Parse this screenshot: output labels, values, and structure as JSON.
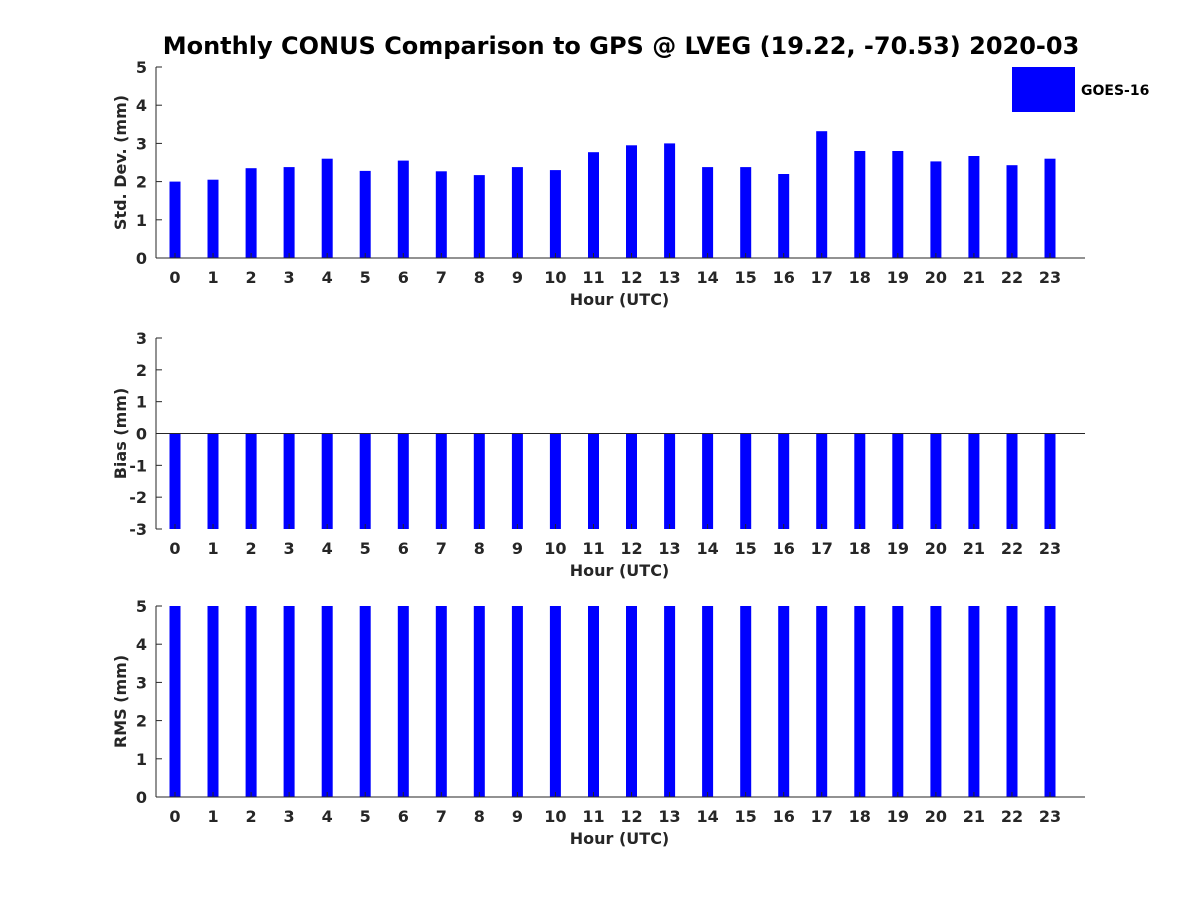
{
  "title": "Monthly CONUS Comparison to GPS @ LVEG (19.22, -70.53) 2020-03",
  "legend": {
    "label": "GOES-16",
    "placement": "top-right"
  },
  "colors": {
    "bar": "#0000ff",
    "axis": "#262626",
    "title": "#000000"
  },
  "chart_data": [
    {
      "type": "bar",
      "name": "std_dev",
      "xlabel": "Hour (UTC)",
      "ylabel": "Std. Dev. (mm)",
      "ylim": [
        0,
        5
      ],
      "yticks": [
        0,
        1,
        2,
        3,
        4,
        5
      ],
      "grid": false,
      "categories": [
        "0",
        "1",
        "2",
        "3",
        "4",
        "5",
        "6",
        "7",
        "8",
        "9",
        "10",
        "11",
        "12",
        "13",
        "14",
        "15",
        "16",
        "17",
        "18",
        "19",
        "20",
        "21",
        "22",
        "23"
      ],
      "series": [
        {
          "name": "GOES-16",
          "values": [
            2.0,
            2.05,
            2.35,
            2.38,
            2.6,
            2.28,
            2.55,
            2.27,
            2.17,
            2.38,
            2.3,
            2.77,
            2.95,
            3.0,
            2.38,
            2.38,
            2.2,
            3.32,
            2.8,
            2.8,
            2.53,
            2.67,
            2.43,
            2.6
          ]
        }
      ]
    },
    {
      "type": "bar",
      "name": "bias",
      "xlabel": "Hour (UTC)",
      "ylabel": "Bias (mm)",
      "ylim": [
        -3,
        3
      ],
      "yticks": [
        -3,
        -2,
        -1,
        0,
        1,
        2,
        3
      ],
      "grid": false,
      "categories": [
        "0",
        "1",
        "2",
        "3",
        "4",
        "5",
        "6",
        "7",
        "8",
        "9",
        "10",
        "11",
        "12",
        "13",
        "14",
        "15",
        "16",
        "17",
        "18",
        "19",
        "20",
        "21",
        "22",
        "23"
      ],
      "series": [
        {
          "name": "GOES-16",
          "values": [
            -3,
            -3,
            -3,
            -3,
            -3,
            -3,
            -3,
            -3,
            -3,
            -3,
            -3,
            -3,
            -3,
            -3,
            -3,
            -3,
            -3,
            -3,
            -3,
            -3,
            -3,
            -3,
            -3,
            -3
          ]
        }
      ]
    },
    {
      "type": "bar",
      "name": "rms",
      "xlabel": "Hour (UTC)",
      "ylabel": "RMS (mm)",
      "ylim": [
        0,
        5
      ],
      "yticks": [
        0,
        1,
        2,
        3,
        4,
        5
      ],
      "grid": false,
      "categories": [
        "0",
        "1",
        "2",
        "3",
        "4",
        "5",
        "6",
        "7",
        "8",
        "9",
        "10",
        "11",
        "12",
        "13",
        "14",
        "15",
        "16",
        "17",
        "18",
        "19",
        "20",
        "21",
        "22",
        "23"
      ],
      "series": [
        {
          "name": "GOES-16",
          "values": [
            5,
            5,
            5,
            5,
            5,
            5,
            5,
            5,
            5,
            5,
            5,
            5,
            5,
            5,
            5,
            5,
            5,
            5,
            5,
            5,
            5,
            5,
            5,
            5
          ]
        }
      ]
    }
  ]
}
